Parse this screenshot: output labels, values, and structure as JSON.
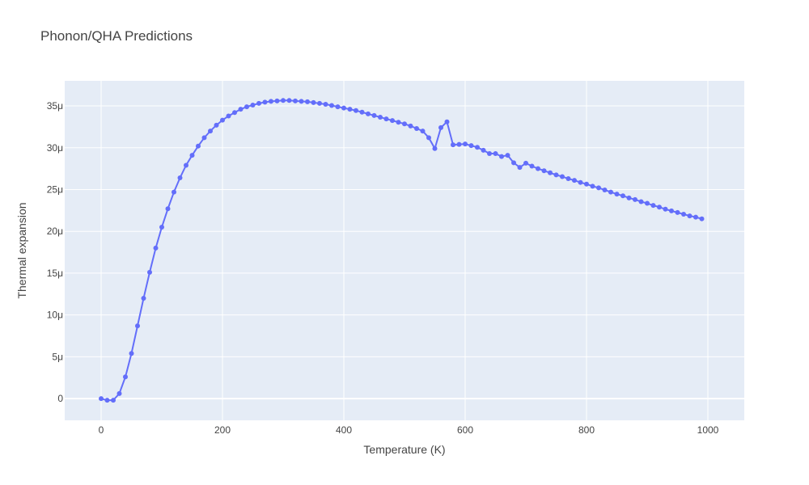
{
  "chart_data": {
    "type": "line",
    "title": "Phonon/QHA Predictions",
    "xlabel": "Temperature (K)",
    "ylabel": "Thermal expansion",
    "xlim": [
      -60,
      1060
    ],
    "ylim": [
      -2.6e-06,
      3.8e-05
    ],
    "x_ticks": [
      0,
      200,
      400,
      600,
      800,
      1000
    ],
    "x_tick_labels": [
      "0",
      "200",
      "400",
      "600",
      "800",
      "1000"
    ],
    "y_ticks": [
      0,
      5e-06,
      1e-05,
      1.5e-05,
      2e-05,
      2.5e-05,
      3e-05,
      3.5e-05
    ],
    "y_tick_labels": [
      "0",
      "5μ",
      "10μ",
      "15μ",
      "20μ",
      "25μ",
      "30μ",
      "35μ"
    ],
    "grid": true,
    "colors": {
      "series": "#636efa",
      "plot_bg": "#e5ecf6",
      "grid": "#ffffff"
    },
    "series": [
      {
        "x": [
          0,
          10,
          20,
          30,
          40,
          50,
          60,
          70,
          80,
          90,
          100,
          110,
          120,
          130,
          140,
          150,
          160,
          170,
          180,
          190,
          200,
          210,
          220,
          230,
          240,
          250,
          260,
          270,
          280,
          290,
          300,
          310,
          320,
          330,
          340,
          350,
          360,
          370,
          380,
          390,
          400,
          410,
          420,
          430,
          440,
          450,
          460,
          470,
          480,
          490,
          500,
          510,
          520,
          530,
          540,
          550,
          560,
          570,
          580,
          590,
          600,
          610,
          620,
          630,
          640,
          650,
          660,
          670,
          680,
          690,
          700,
          710,
          720,
          730,
          740,
          750,
          760,
          770,
          780,
          790,
          800,
          810,
          820,
          830,
          840,
          850,
          860,
          870,
          880,
          890,
          900,
          910,
          920,
          930,
          940,
          950,
          960,
          970,
          980,
          990
        ],
        "y": [
          0,
          -2e-07,
          -2e-07,
          6e-07,
          2.6e-06,
          5.4e-06,
          8.7e-06,
          1.2e-05,
          1.51e-05,
          1.8e-05,
          2.05e-05,
          2.27e-05,
          2.47e-05,
          2.64e-05,
          2.79e-05,
          2.91e-05,
          3.02e-05,
          3.12e-05,
          3.2e-05,
          3.27e-05,
          3.33e-05,
          3.38e-05,
          3.42e-05,
          3.46e-05,
          3.49e-05,
          3.51e-05,
          3.53e-05,
          3.545e-05,
          3.555e-05,
          3.56e-05,
          3.565e-05,
          3.565e-05,
          3.56e-05,
          3.555e-05,
          3.55e-05,
          3.54e-05,
          3.53e-05,
          3.52e-05,
          3.505e-05,
          3.49e-05,
          3.475e-05,
          3.46e-05,
          3.445e-05,
          3.425e-05,
          3.405e-05,
          3.385e-05,
          3.365e-05,
          3.345e-05,
          3.325e-05,
          3.305e-05,
          3.285e-05,
          3.26e-05,
          3.23e-05,
          3.2e-05,
          3.12e-05,
          2.99e-05,
          3.24e-05,
          3.31e-05,
          3.035e-05,
          3.04e-05,
          3.045e-05,
          3.025e-05,
          3.005e-05,
          2.97e-05,
          2.93e-05,
          2.93e-05,
          2.895e-05,
          2.91e-05,
          2.82e-05,
          2.765e-05,
          2.815e-05,
          2.78e-05,
          2.75e-05,
          2.725e-05,
          2.7e-05,
          2.675e-05,
          2.655e-05,
          2.63e-05,
          2.61e-05,
          2.585e-05,
          2.565e-05,
          2.54e-05,
          2.52e-05,
          2.495e-05,
          2.47e-05,
          2.445e-05,
          2.425e-05,
          2.4e-05,
          2.38e-05,
          2.355e-05,
          2.335e-05,
          2.31e-05,
          2.29e-05,
          2.265e-05,
          2.245e-05,
          2.225e-05,
          2.205e-05,
          2.185e-05,
          2.17e-05,
          2.15e-05
        ]
      }
    ]
  }
}
